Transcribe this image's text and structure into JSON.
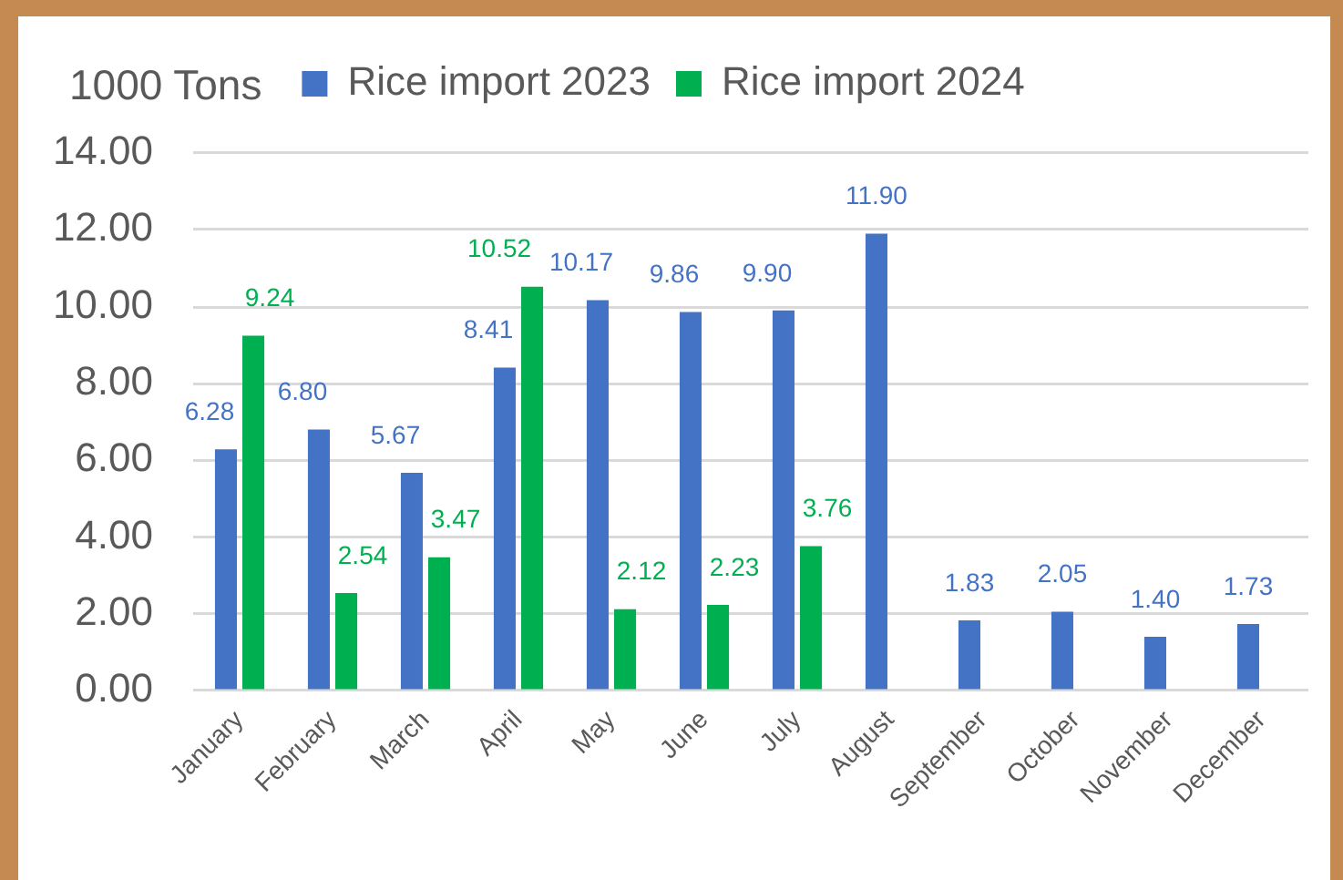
{
  "chart_data": {
    "type": "bar",
    "ylabel": "1000 Tons",
    "categories": [
      "January",
      "February",
      "March",
      "April",
      "May",
      "June",
      "July",
      "August",
      "September",
      "October",
      "November",
      "December"
    ],
    "series": [
      {
        "name": "Rice import 2023",
        "color": "#4472c4",
        "values": [
          6.28,
          6.8,
          5.67,
          8.41,
          10.17,
          9.86,
          9.9,
          11.9,
          1.83,
          2.05,
          1.4,
          1.73
        ],
        "value_labels": [
          "6.28",
          "6.80",
          "5.67",
          "8.41",
          "10.17",
          "9.86",
          "9.90",
          "11.90",
          "1.83",
          "2.05",
          "1.40",
          "1.73"
        ]
      },
      {
        "name": "Rice import 2024",
        "color": "#00b050",
        "values": [
          9.24,
          2.54,
          3.47,
          10.52,
          2.12,
          2.23,
          3.76,
          null,
          null,
          null,
          null,
          null
        ],
        "value_labels": [
          "9.24",
          "2.54",
          "3.47",
          "10.52",
          "2.12",
          "2.23",
          "3.76",
          null,
          null,
          null,
          null,
          null
        ]
      }
    ],
    "ylim": [
      0,
      14
    ],
    "yticks": [
      {
        "value": 0,
        "label": "0.00"
      },
      {
        "value": 2,
        "label": "2.00"
      },
      {
        "value": 4,
        "label": "4.00"
      },
      {
        "value": 6,
        "label": "6.00"
      },
      {
        "value": 8,
        "label": "8.00"
      },
      {
        "value": 10,
        "label": "10.00"
      },
      {
        "value": 12,
        "label": "12.00"
      },
      {
        "value": 14,
        "label": "14.00"
      }
    ],
    "grid": "y",
    "legend": "top"
  }
}
